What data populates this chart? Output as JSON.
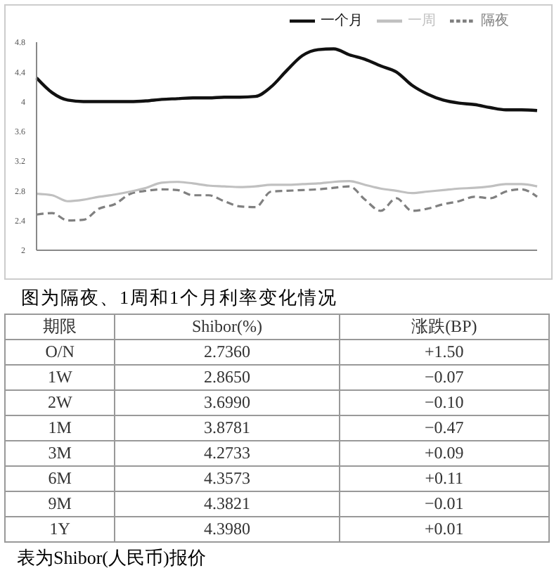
{
  "chart_data": [
    {
      "type": "line",
      "annotations": [
        "图为隔夜、1周和1个月利率变化情况"
      ],
      "categories": [
        null,
        null,
        null,
        null,
        null,
        null,
        null,
        null,
        null,
        null,
        null,
        null,
        null,
        null,
        null,
        null,
        null,
        null,
        null,
        null,
        null,
        null,
        null,
        null,
        null,
        null,
        null,
        null,
        null,
        null,
        null,
        null,
        null
      ],
      "series": [
        {
          "name": "隔夜",
          "color": "#808080",
          "line_style": "dashed",
          "values": [
            2.48,
            2.5,
            2.4,
            2.41,
            2.56,
            2.62,
            2.76,
            2.8,
            2.82,
            2.81,
            2.74,
            2.74,
            2.66,
            2.59,
            2.58,
            2.79,
            2.8,
            2.81,
            2.82,
            2.84,
            2.86,
            2.68,
            2.53,
            2.7,
            2.53,
            2.56,
            2.62,
            2.66,
            2.72,
            2.7,
            2.79,
            2.82,
            2.72
          ]
        },
        {
          "name": "一周",
          "color": "#c0c0c0",
          "line_style": "solid",
          "values": [
            2.76,
            2.74,
            2.66,
            2.68,
            2.72,
            2.75,
            2.79,
            2.84,
            2.91,
            2.92,
            2.9,
            2.87,
            2.86,
            2.85,
            2.86,
            2.88,
            2.88,
            2.89,
            2.9,
            2.92,
            2.93,
            2.88,
            2.83,
            2.8,
            2.77,
            2.79,
            2.81,
            2.83,
            2.84,
            2.86,
            2.89,
            2.89,
            2.86
          ]
        },
        {
          "name": "一个月",
          "color": "#111111",
          "line_style": "solid",
          "values": [
            4.32,
            4.12,
            4.02,
            4.0,
            4.0,
            4.0,
            4.0,
            4.01,
            4.03,
            4.04,
            4.05,
            4.05,
            4.06,
            4.06,
            4.07,
            4.2,
            4.42,
            4.62,
            4.7,
            4.71,
            4.63,
            4.57,
            4.48,
            4.4,
            4.22,
            4.1,
            4.02,
            3.98,
            3.96,
            3.92,
            3.89,
            3.89,
            3.88
          ]
        }
      ],
      "ylim": [
        2,
        4.8
      ],
      "yticks": [
        2,
        2.4,
        2.8,
        3.2,
        3.6,
        4,
        4.4,
        4.8
      ],
      "grid": false,
      "legend": "top right",
      "tick_labels": "y"
    },
    {
      "type": "other",
      "xlabel": "期限",
      "annotations": [
        "表为Shibor(人民币)报价"
      ],
      "data_labels": true,
      "categories": [
        "O/N",
        "1W",
        "2W",
        "1M",
        "3M",
        "6M",
        "9M",
        "1Y"
      ],
      "series": [
        {
          "name": "Shibor(%)",
          "values": [
            2.736,
            2.865,
            3.699,
            3.8781,
            4.2733,
            4.3573,
            4.3821,
            4.398
          ],
          "value_labels": [
            "2.7360",
            "2.8650",
            "3.6990",
            "3.8781",
            "4.2733",
            "4.3573",
            "4.3821",
            "4.3980"
          ]
        },
        {
          "name": "涨跌(BP)",
          "values": [
            1.5,
            -0.07,
            -0.1,
            -0.47,
            0.09,
            0.11,
            -0.01,
            0.01
          ],
          "value_labels": [
            "+1.50",
            "−0.07",
            "−0.10",
            "−0.47",
            "+0.09",
            "+0.11",
            "−0.01",
            "+0.01"
          ]
        }
      ]
    }
  ]
}
